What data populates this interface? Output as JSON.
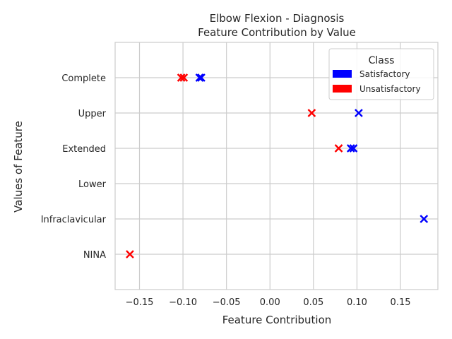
{
  "chart_data": {
    "type": "scatter",
    "title": "Elbow Flexion - Diagnosis",
    "subtitle": "Feature Contribution by Value",
    "xlabel": "Feature Contribution",
    "ylabel": "Values of Feature",
    "xlim": [
      -0.178,
      0.193
    ],
    "x_ticks": [
      -0.15,
      -0.1,
      -0.05,
      0.0,
      0.05,
      0.1,
      0.15
    ],
    "x_tick_labels": [
      "−0.15",
      "−0.10",
      "−0.05",
      "0.00",
      "0.05",
      "0.10",
      "0.15"
    ],
    "categories": [
      "Complete",
      "Upper",
      "Extended",
      "Lower",
      "Infraclavicular",
      "NINA"
    ],
    "grid": true,
    "marker": "x",
    "legend": {
      "title": "Class",
      "placement": "top-right"
    },
    "series": [
      {
        "name": "Satisfactory",
        "color": "#0000ff",
        "points": [
          {
            "category": "Complete",
            "x": -0.081
          },
          {
            "category": "Complete",
            "x": -0.079
          },
          {
            "category": "Upper",
            "x": 0.102
          },
          {
            "category": "Extended",
            "x": 0.093
          },
          {
            "category": "Extended",
            "x": 0.096
          },
          {
            "category": "Infraclavicular",
            "x": 0.177
          }
        ]
      },
      {
        "name": "Unsatisfactory",
        "color": "#ff0000",
        "points": [
          {
            "category": "Complete",
            "x": -0.102
          },
          {
            "category": "Complete",
            "x": -0.099
          },
          {
            "category": "Upper",
            "x": 0.048
          },
          {
            "category": "Extended",
            "x": 0.079
          },
          {
            "category": "NINA",
            "x": -0.161
          }
        ]
      }
    ]
  }
}
